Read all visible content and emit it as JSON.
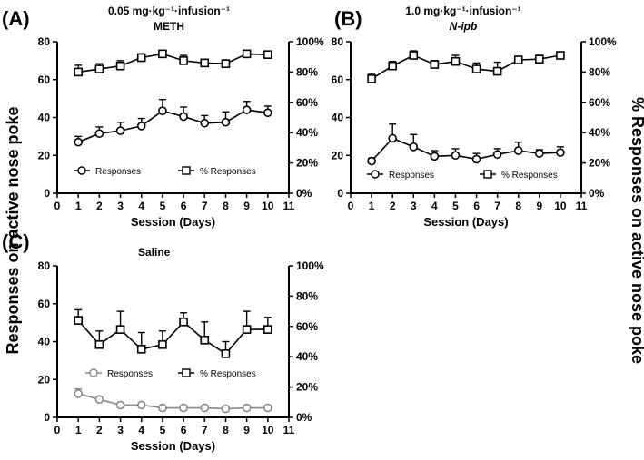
{
  "figure": {
    "left_ylabel": "Responses on active nose poke",
    "right_ylabel": "% Responses on active nose poke"
  },
  "chart_data": [
    {
      "type": "line",
      "panel": "(A)",
      "title": "0.05 mg·kg⁻¹·infusion⁻¹",
      "subtitle": "METH",
      "subtitle_italic": false,
      "xlabel": "Session (Days)",
      "x": [
        1,
        2,
        3,
        4,
        5,
        6,
        7,
        8,
        9,
        10
      ],
      "xlim": [
        0,
        11
      ],
      "xticks": [
        "0",
        "1",
        "2",
        "3",
        "4",
        "5",
        "6",
        "7",
        "8",
        "9",
        "10",
        "11"
      ],
      "ylim": [
        0,
        80
      ],
      "yticks": [
        "0",
        "20",
        "40",
        "60",
        "80"
      ],
      "y2lim": [
        0,
        100
      ],
      "y2ticks": [
        "0%",
        "20%",
        "40%",
        "60%",
        "80%",
        "100%"
      ],
      "legend": {
        "responses": "Responses",
        "percent": "% Responses"
      },
      "series": [
        {
          "name": "Responses",
          "axis": "left",
          "marker": "circle",
          "color": "#000000",
          "values": [
            27,
            31.5,
            33,
            35.5,
            43.5,
            40.5,
            37,
            37.5,
            44,
            42.5
          ],
          "errors": [
            3,
            3.5,
            4.5,
            4,
            6,
            5,
            4,
            5.5,
            4.5,
            3.5
          ]
        },
        {
          "name": "% Responses",
          "axis": "right",
          "marker": "square",
          "color": "#000000",
          "values": [
            80,
            82,
            84,
            89.5,
            92,
            87.5,
            86,
            85.5,
            92,
            91.5
          ],
          "errors": [
            4.5,
            3.5,
            3.5,
            2.5,
            2,
            3.5,
            2.5,
            2.5,
            2.5,
            2
          ]
        }
      ]
    },
    {
      "type": "line",
      "panel": "(B)",
      "title": "1.0 mg·kg⁻¹·infusion⁻¹",
      "subtitle": "N-ipb",
      "subtitle_italic": true,
      "xlabel": "Session (Days)",
      "x": [
        1,
        2,
        3,
        4,
        5,
        6,
        7,
        8,
        9,
        10
      ],
      "xlim": [
        0,
        11
      ],
      "xticks": [
        "0",
        "1",
        "2",
        "3",
        "4",
        "5",
        "6",
        "7",
        "8",
        "9",
        "10",
        "11"
      ],
      "ylim": [
        0,
        80
      ],
      "yticks": [
        "0",
        "20",
        "40",
        "60",
        "80"
      ],
      "y2lim": [
        0,
        100
      ],
      "y2ticks": [
        "0%",
        "20%",
        "40%",
        "60%",
        "80%",
        "100%"
      ],
      "legend": {
        "responses": "Responses",
        "percent": "% Responses"
      },
      "series": [
        {
          "name": "Responses",
          "axis": "left",
          "marker": "circle",
          "color": "#000000",
          "values": [
            17,
            29,
            24.5,
            19.5,
            20,
            18,
            20.5,
            22.5,
            21,
            21.5
          ],
          "errors": [
            1.5,
            7.5,
            6.5,
            3,
            3.5,
            3,
            3,
            4.5,
            2,
            3
          ]
        },
        {
          "name": "% Responses",
          "axis": "right",
          "marker": "square",
          "color": "#000000",
          "values": [
            75.5,
            84,
            91,
            85,
            87,
            82,
            80.5,
            88,
            88.5,
            91
          ],
          "errors": [
            3,
            3,
            3,
            2.5,
            4,
            4,
            6,
            2,
            2.5,
            2
          ]
        }
      ]
    },
    {
      "type": "line",
      "panel": "(C)",
      "title": "Saline",
      "subtitle": "",
      "subtitle_italic": false,
      "xlabel": "Session (Days)",
      "x": [
        1,
        2,
        3,
        4,
        5,
        6,
        7,
        8,
        9,
        10
      ],
      "xlim": [
        0,
        11
      ],
      "xticks": [
        "0",
        "1",
        "2",
        "3",
        "4",
        "5",
        "6",
        "7",
        "8",
        "9",
        "10",
        "11"
      ],
      "ylim": [
        0,
        80
      ],
      "yticks": [
        "0",
        "20",
        "40",
        "60",
        "80"
      ],
      "y2lim": [
        0,
        100
      ],
      "y2ticks": [
        "0%",
        "20%",
        "40%",
        "60%",
        "80%",
        "100%"
      ],
      "legend": {
        "responses": "Responses",
        "percent": "% Responses"
      },
      "series": [
        {
          "name": "Responses",
          "axis": "left",
          "marker": "circle",
          "color": "#888888",
          "values": [
            12.5,
            9.5,
            6.5,
            6.5,
            5,
            5,
            5,
            4.5,
            5,
            5
          ],
          "errors": [
            2.5,
            1,
            0.5,
            0.5,
            0.5,
            0.5,
            0.5,
            0.5,
            0.5,
            0.5
          ]
        },
        {
          "name": "% Responses",
          "axis": "right",
          "marker": "square",
          "color": "#000000",
          "values": [
            64,
            48,
            58,
            45,
            48,
            63,
            51,
            42,
            58,
            58
          ],
          "errors": [
            7,
            9,
            12,
            11,
            9,
            6,
            12,
            8,
            12,
            8
          ]
        }
      ]
    }
  ]
}
